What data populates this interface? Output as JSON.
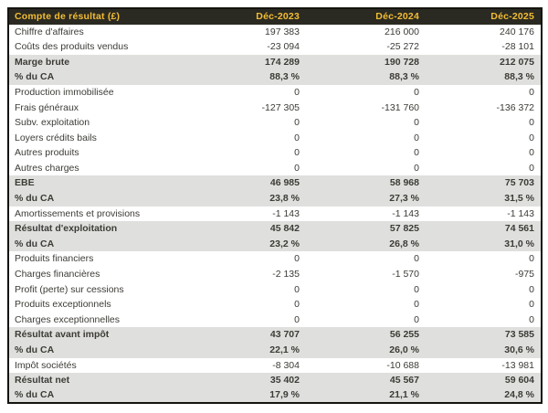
{
  "table": {
    "title": "Compte de résultat (£)",
    "columns": [
      "Déc-2023",
      "Déc-2024",
      "Déc-2025"
    ],
    "rows": [
      {
        "label": "Chiffre d'affaires",
        "values": [
          "197 383",
          "216 000",
          "240 176"
        ],
        "emphasis": false
      },
      {
        "label": "Coûts des produits vendus",
        "values": [
          "-23 094",
          "-25 272",
          "-28 101"
        ],
        "emphasis": false
      },
      {
        "label": "Marge brute",
        "values": [
          "174 289",
          "190 728",
          "212 075"
        ],
        "emphasis": true
      },
      {
        "label": "% du CA",
        "values": [
          "88,3 %",
          "88,3 %",
          "88,3 %"
        ],
        "emphasis": true
      },
      {
        "label": "Production immobilisée",
        "values": [
          "0",
          "0",
          "0"
        ],
        "emphasis": false
      },
      {
        "label": "Frais généraux",
        "values": [
          "-127 305",
          "-131 760",
          "-136 372"
        ],
        "emphasis": false
      },
      {
        "label": "Subv. exploitation",
        "values": [
          "0",
          "0",
          "0"
        ],
        "emphasis": false
      },
      {
        "label": "Loyers crédits bails",
        "values": [
          "0",
          "0",
          "0"
        ],
        "emphasis": false
      },
      {
        "label": "Autres produits",
        "values": [
          "0",
          "0",
          "0"
        ],
        "emphasis": false
      },
      {
        "label": "Autres charges",
        "values": [
          "0",
          "0",
          "0"
        ],
        "emphasis": false
      },
      {
        "label": "EBE",
        "values": [
          "46 985",
          "58 968",
          "75 703"
        ],
        "emphasis": true
      },
      {
        "label": "% du CA",
        "values": [
          "23,8 %",
          "27,3 %",
          "31,5 %"
        ],
        "emphasis": true
      },
      {
        "label": "Amortissements et provisions",
        "values": [
          "-1 143",
          "-1 143",
          "-1 143"
        ],
        "emphasis": false
      },
      {
        "label": "Résultat d'exploitation",
        "values": [
          "45 842",
          "57 825",
          "74 561"
        ],
        "emphasis": true
      },
      {
        "label": "% du CA",
        "values": [
          "23,2 %",
          "26,8 %",
          "31,0 %"
        ],
        "emphasis": true
      },
      {
        "label": "Produits financiers",
        "values": [
          "0",
          "0",
          "0"
        ],
        "emphasis": false
      },
      {
        "label": "Charges financières",
        "values": [
          "-2 135",
          "-1 570",
          "-975"
        ],
        "emphasis": false
      },
      {
        "label": "Profit (perte) sur cessions",
        "values": [
          "0",
          "0",
          "0"
        ],
        "emphasis": false
      },
      {
        "label": "Produits exceptionnels",
        "values": [
          "0",
          "0",
          "0"
        ],
        "emphasis": false
      },
      {
        "label": "Charges exceptionnelles",
        "values": [
          "0",
          "0",
          "0"
        ],
        "emphasis": false
      },
      {
        "label": "Résultat avant impôt",
        "values": [
          "43 707",
          "56 255",
          "73 585"
        ],
        "emphasis": true
      },
      {
        "label": "% du CA",
        "values": [
          "22,1 %",
          "26,0 %",
          "30,6 %"
        ],
        "emphasis": true
      },
      {
        "label": "Impôt sociétés",
        "values": [
          "-8 304",
          "-10 688",
          "-13 981"
        ],
        "emphasis": false
      },
      {
        "label": "Résultat net",
        "values": [
          "35 402",
          "45 567",
          "59 604"
        ],
        "emphasis": true
      },
      {
        "label": "% du CA",
        "values": [
          "17,9 %",
          "21,1 %",
          "24,8 %"
        ],
        "emphasis": true
      }
    ]
  },
  "colors": {
    "border": "#14130e",
    "header_bg": "#2b2a22",
    "header_text": "#f3bd33",
    "emphasis_row_bg": "#dfdfdd",
    "body_text": "#3c3b36",
    "page_bg": "#ffffff"
  }
}
